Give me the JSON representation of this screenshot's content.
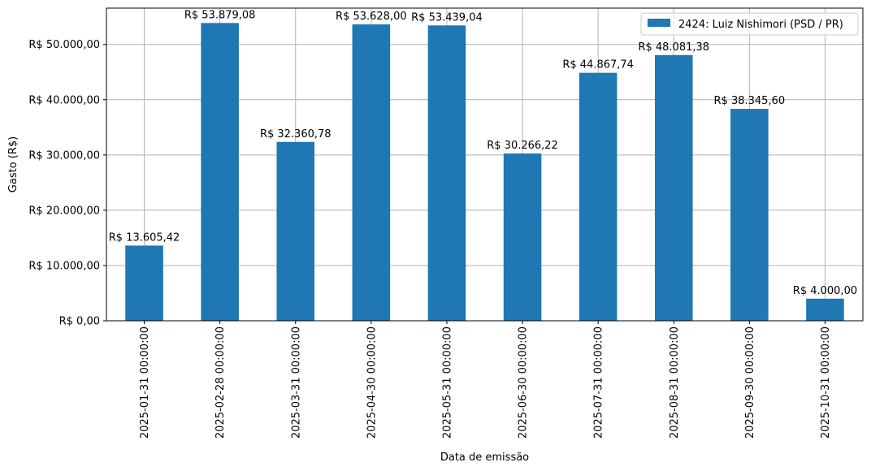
{
  "chart_data": {
    "type": "bar",
    "categories": [
      "2025-01-31 00:00:00",
      "2025-02-28 00:00:00",
      "2025-03-31 00:00:00",
      "2025-04-30 00:00:00",
      "2025-05-31 00:00:00",
      "2025-06-30 00:00:00",
      "2025-07-31 00:00:00",
      "2025-08-31 00:00:00",
      "2025-09-30 00:00:00",
      "2025-10-31 00:00:00"
    ],
    "series": [
      {
        "name": "2424: Luiz Nishimori (PSD / PR)",
        "values": [
          13605.42,
          53879.08,
          32360.78,
          53628.0,
          53439.04,
          30266.22,
          44867.74,
          48081.38,
          38345.6,
          4000.0
        ],
        "color": "#1f77b4"
      }
    ],
    "data_labels": [
      "R$ 13.605,42",
      "R$ 53.879,08",
      "R$ 32.360,78",
      "R$ 53.628,00",
      "R$ 53.439,04",
      "R$ 30.266,22",
      "R$ 44.867,74",
      "R$ 48.081,38",
      "R$ 38.345,60",
      "R$ 4.000,00"
    ],
    "xlabel": "Data de emissão",
    "ylabel": "Gasto (R$)",
    "ylim": [
      0,
      56572
    ],
    "yticks": [
      0,
      10000,
      20000,
      30000,
      40000,
      50000
    ],
    "ytick_labels": [
      "R$ 0,00",
      "R$ 10.000,00",
      "R$ 20.000,00",
      "R$ 30.000,00",
      "R$ 40.000,00",
      "R$ 50.000,00"
    ],
    "grid": true,
    "legend_position": "top-right"
  }
}
